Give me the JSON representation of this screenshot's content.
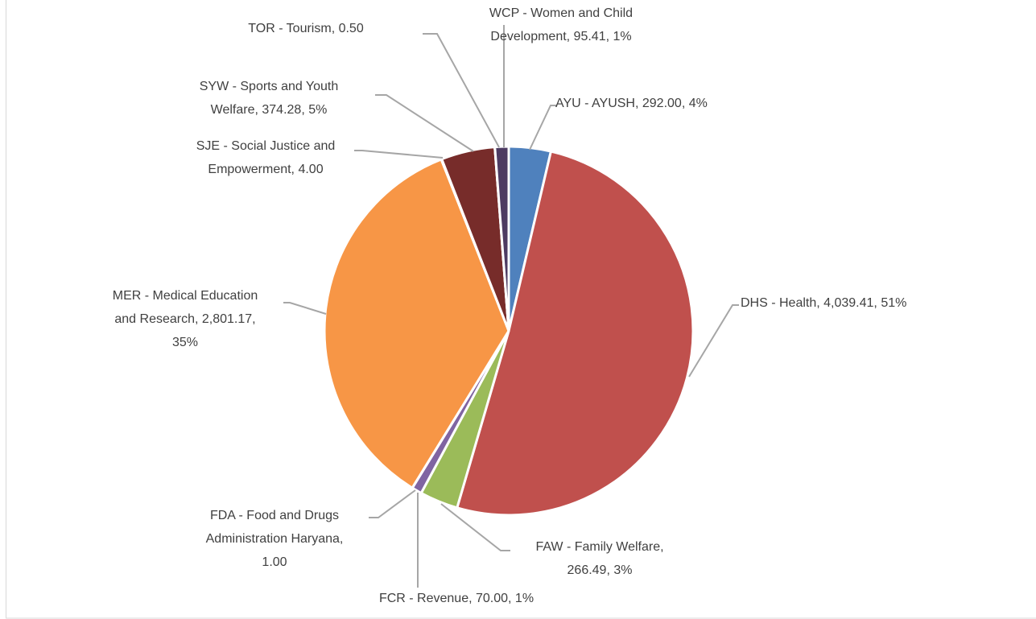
{
  "chart_data": {
    "type": "pie",
    "labels": [
      [
        "AYU - AYUSH, 292.00, 4%"
      ],
      [
        "DHS - Health, 4,039.41, 51%"
      ],
      [
        "FAW - Family Welfare,",
        "266.49, 3%"
      ],
      [
        "FCR - Revenue, 70.00, 1%"
      ],
      [
        "FDA - Food and Drugs",
        "Administration Haryana,",
        "1.00"
      ],
      [
        "MER - Medical Education",
        "and Research, 2,801.17,",
        "35%"
      ],
      [
        "SJE - Social Justice and",
        "Empowerment, 4.00"
      ],
      [
        "SYW - Sports and Youth",
        "Welfare, 374.28, 5%"
      ],
      [
        "TOR - Tourism, 0.50"
      ],
      [
        "WCP - Women and Child",
        "Development, 95.41, 1%"
      ]
    ],
    "values": [
      292.0,
      4039.41,
      266.49,
      70.0,
      1.0,
      2801.17,
      4.0,
      374.28,
      0.5,
      95.41
    ],
    "colors": [
      "#4f81bd",
      "#c0504d",
      "#9bbb59",
      "#8064a2",
      "#4bacc6",
      "#f79646",
      "#2c4d75",
      "#772c2a",
      "#5f7530",
      "#4d3b62"
    ]
  }
}
